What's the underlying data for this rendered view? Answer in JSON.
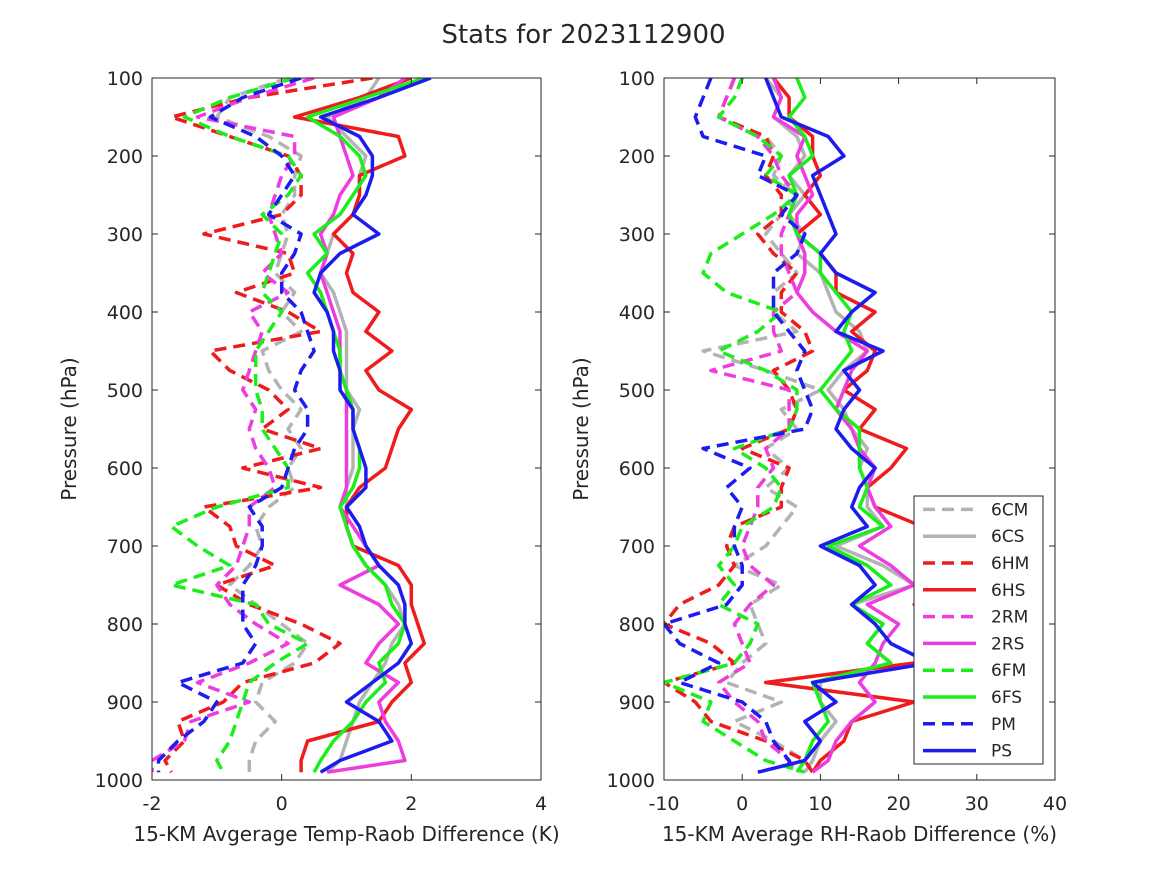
{
  "figure_title": "Stats for 2023112900",
  "chart_data": [
    {
      "type": "line",
      "xlabel": "15-KM Avgerage Temp-Raob Difference (K)",
      "ylabel": "Pressure (hPa)",
      "xlim": [
        -2,
        4
      ],
      "ylim": [
        100,
        1000
      ],
      "y_reversed": true,
      "xticks": [
        -2,
        0,
        2,
        4
      ],
      "yticks": [
        100,
        200,
        300,
        400,
        500,
        600,
        700,
        800,
        900,
        1000
      ],
      "pressure_levels": [
        100,
        125,
        150,
        175,
        200,
        225,
        250,
        275,
        300,
        325,
        350,
        375,
        400,
        425,
        450,
        475,
        500,
        525,
        550,
        575,
        600,
        625,
        650,
        675,
        700,
        725,
        750,
        775,
        800,
        825,
        850,
        875,
        900,
        925,
        950,
        975,
        990
      ],
      "series": [
        {
          "name": "6CM",
          "color": "#b3b3b3",
          "dash": true,
          "values": [
            0.1,
            -0.8,
            -1.0,
            -0.2,
            0.3,
            0.2,
            0.2,
            0.0,
            0.1,
            0.0,
            -0.1,
            0.2,
            0.0,
            0.3,
            -0.3,
            -0.2,
            0.0,
            0.3,
            0.1,
            0.3,
            0.1,
            0.2,
            -0.2,
            -0.4,
            -0.3,
            -0.5,
            -0.8,
            -0.4,
            0.0,
            0.4,
            0.2,
            -0.3,
            -0.4,
            -0.1,
            -0.4,
            -0.5,
            -0.5
          ]
        },
        {
          "name": "6CS",
          "color": "#b3b3b3",
          "dash": false,
          "values": [
            1.5,
            1.3,
            0.7,
            1.0,
            1.3,
            1.2,
            1.2,
            1.1,
            0.8,
            0.7,
            0.6,
            0.8,
            0.9,
            1.0,
            1.0,
            1.0,
            1.0,
            1.2,
            1.1,
            1.1,
            1.1,
            1.0,
            1.0,
            1.0,
            1.1,
            1.3,
            1.6,
            1.8,
            1.9,
            1.7,
            1.6,
            1.4,
            1.2,
            1.1,
            1.0,
            0.9,
            0.7
          ]
        },
        {
          "name": "6HM",
          "color": "#ee1c1c",
          "dash": true,
          "values": [
            1.4,
            -0.5,
            -1.7,
            -0.8,
            0.1,
            0.3,
            0.3,
            0.0,
            -1.2,
            0.1,
            0.2,
            -0.7,
            0.1,
            0.6,
            -1.1,
            -0.8,
            -0.2,
            0.1,
            -0.3,
            0.6,
            -0.6,
            0.6,
            -1.2,
            -0.8,
            -0.7,
            -0.1,
            -1.0,
            -0.5,
            0.3,
            0.9,
            0.5,
            -0.6,
            -0.9,
            -1.6,
            -1.5,
            -1.8,
            -1.7
          ]
        },
        {
          "name": "6HS",
          "color": "#ee1c1c",
          "dash": false,
          "values": [
            2.0,
            1.2,
            0.2,
            1.8,
            1.9,
            1.2,
            1.2,
            1.1,
            0.8,
            1.1,
            1.0,
            1.1,
            1.5,
            1.3,
            1.7,
            1.3,
            1.5,
            2.0,
            1.8,
            1.7,
            1.6,
            1.2,
            1.0,
            1.0,
            1.1,
            1.8,
            2.0,
            2.0,
            2.1,
            2.2,
            1.9,
            2.0,
            1.7,
            1.5,
            0.4,
            0.3,
            0.3
          ]
        },
        {
          "name": "2RM",
          "color": "#ee3ddf",
          "dash": true,
          "values": [
            0.5,
            -0.5,
            -1.3,
            0.2,
            0.2,
            0.0,
            -0.1,
            -0.2,
            -0.1,
            0.0,
            -0.3,
            0.1,
            -0.5,
            -0.3,
            -0.4,
            -0.5,
            -0.6,
            -0.4,
            -0.5,
            -0.4,
            -0.2,
            -0.1,
            -0.5,
            -0.5,
            -0.6,
            -0.7,
            -1.0,
            -0.8,
            -0.4,
            0.1,
            -0.5,
            -1.3,
            -0.5,
            -1.4,
            -1.5,
            -2.0,
            -2.0
          ]
        },
        {
          "name": "2RS",
          "color": "#ee3ddf",
          "dash": false,
          "values": [
            1.9,
            1.5,
            0.8,
            0.9,
            1.0,
            1.1,
            0.9,
            0.8,
            0.6,
            0.7,
            0.6,
            0.7,
            0.8,
            0.9,
            0.9,
            0.9,
            1.0,
            1.0,
            1.0,
            1.0,
            1.0,
            1.0,
            0.9,
            1.1,
            1.3,
            1.5,
            0.9,
            1.5,
            1.8,
            1.5,
            1.3,
            1.8,
            1.5,
            1.6,
            1.8,
            1.9,
            0.7
          ]
        },
        {
          "name": "6FM",
          "color": "#1cee1c",
          "dash": true,
          "values": [
            0.2,
            -0.8,
            -1.5,
            -0.8,
            0.1,
            0.3,
            0.1,
            -0.3,
            0.0,
            -0.1,
            -0.2,
            -0.3,
            0.0,
            -0.2,
            -0.4,
            -0.4,
            -0.4,
            -0.3,
            -0.3,
            -0.1,
            0.1,
            0.1,
            -1.0,
            -1.7,
            -1.3,
            -0.8,
            -1.7,
            -0.4,
            -0.2,
            0.4,
            -0.1,
            -0.5,
            -0.6,
            -0.7,
            -0.8,
            -1.0,
            -0.9
          ]
        },
        {
          "name": "6FS",
          "color": "#1cee1c",
          "dash": false,
          "values": [
            2.2,
            1.3,
            0.4,
            0.9,
            1.2,
            1.3,
            1.1,
            0.9,
            0.5,
            0.7,
            0.4,
            0.6,
            0.7,
            0.8,
            0.9,
            0.9,
            1.0,
            1.1,
            1.1,
            1.2,
            1.2,
            1.1,
            0.9,
            1.0,
            1.1,
            1.3,
            1.6,
            1.7,
            1.9,
            1.8,
            1.5,
            1.6,
            1.3,
            1.1,
            0.8,
            0.6,
            0.5
          ]
        },
        {
          "name": "PM",
          "color": "#1c1cee",
          "dash": true,
          "values": [
            0.3,
            -0.6,
            -1.1,
            -0.4,
            0.0,
            0.2,
            0.0,
            -0.2,
            0.3,
            0.2,
            0.0,
            0.0,
            0.3,
            0.4,
            0.5,
            0.3,
            0.2,
            0.4,
            0.4,
            0.2,
            0.1,
            0.0,
            -0.5,
            -0.3,
            -0.3,
            -0.4,
            -0.6,
            -0.6,
            -0.6,
            -0.4,
            -0.6,
            -1.6,
            -1.0,
            -1.2,
            -1.6,
            -1.9,
            -1.9
          ]
        },
        {
          "name": "PS",
          "color": "#1c1cee",
          "dash": false,
          "values": [
            2.3,
            1.5,
            0.6,
            1.2,
            1.4,
            1.4,
            1.3,
            1.1,
            1.5,
            0.9,
            0.6,
            0.5,
            0.7,
            0.8,
            0.8,
            0.9,
            0.9,
            1.1,
            1.1,
            1.2,
            1.3,
            1.3,
            1.0,
            1.2,
            1.3,
            1.5,
            1.8,
            1.9,
            1.9,
            2.0,
            1.8,
            1.4,
            1.0,
            1.5,
            1.7,
            0.9,
            0.6
          ]
        }
      ]
    },
    {
      "type": "line",
      "xlabel": "15-KM Average RH-Raob Difference (%)",
      "ylabel": "Pressure (hPa)",
      "xlim": [
        -10,
        40
      ],
      "ylim": [
        100,
        1000
      ],
      "y_reversed": true,
      "xticks": [
        -10,
        0,
        10,
        20,
        30,
        40
      ],
      "yticks": [
        100,
        200,
        300,
        400,
        500,
        600,
        700,
        800,
        900,
        1000
      ],
      "legend_position": "bottom-right",
      "pressure_levels": [
        100,
        125,
        150,
        175,
        200,
        225,
        250,
        275,
        300,
        325,
        350,
        375,
        400,
        425,
        450,
        475,
        500,
        525,
        550,
        575,
        600,
        625,
        650,
        675,
        700,
        725,
        750,
        775,
        800,
        825,
        850,
        875,
        900,
        925,
        950,
        975,
        990
      ],
      "series": [
        {
          "name": "6CM",
          "color": "#b3b3b3",
          "dash": true,
          "values": [
            -1,
            -2,
            -3,
            3,
            5,
            4,
            7,
            5,
            3,
            5,
            7,
            4,
            4,
            7,
            -5,
            3,
            10,
            5,
            7,
            3,
            6,
            3,
            7,
            5,
            3,
            -1,
            5,
            1,
            2,
            3,
            0,
            -2,
            5,
            -1,
            4,
            8,
            7
          ]
        },
        {
          "name": "6CS",
          "color": "#b3b3b3",
          "dash": false,
          "values": [
            3,
            5,
            4,
            7,
            8,
            6,
            8,
            6,
            8,
            7,
            10,
            11,
            12,
            15,
            16,
            13,
            11,
            13,
            14,
            16,
            15,
            16,
            16,
            18,
            12,
            18,
            22,
            14,
            18,
            16,
            19,
            10,
            10,
            12,
            10,
            9,
            8
          ]
        },
        {
          "name": "6HM",
          "color": "#ee1c1c",
          "dash": true,
          "values": [
            -1,
            -2,
            -3,
            3,
            4,
            3,
            5,
            5,
            2,
            4,
            7,
            5,
            5,
            8,
            9,
            4,
            6,
            7,
            6,
            0,
            6,
            5,
            5,
            -1,
            -2,
            -1,
            -3,
            -8,
            -10,
            -4,
            -1,
            -10,
            -6,
            -4,
            3,
            8,
            9
          ]
        },
        {
          "name": "6HS",
          "color": "#ee1c1c",
          "dash": false,
          "values": [
            4,
            6,
            6,
            9,
            9,
            10,
            8,
            10,
            7,
            10,
            12,
            12,
            17,
            14,
            17,
            16,
            13,
            17,
            15,
            21,
            19,
            16,
            17,
            23,
            26,
            24,
            28,
            22,
            25,
            26,
            22,
            3,
            22,
            14,
            13,
            10,
            9
          ]
        },
        {
          "name": "2RM",
          "color": "#ee3ddf",
          "dash": true,
          "values": [
            -1,
            -2,
            -3,
            2,
            4,
            5,
            7,
            6,
            5,
            5,
            6,
            7,
            4,
            4,
            5,
            -4,
            6,
            6,
            6,
            3,
            4,
            2,
            2,
            1,
            0,
            1,
            4,
            1,
            -1,
            0,
            1,
            -3,
            -1,
            2,
            3,
            6,
            7
          ]
        },
        {
          "name": "2RS",
          "color": "#ee3ddf",
          "dash": false,
          "values": [
            4,
            5,
            4,
            8,
            7,
            8,
            9,
            7,
            7,
            8,
            8,
            7,
            9,
            12,
            16,
            14,
            13,
            12,
            14,
            15,
            17,
            16,
            17,
            19,
            15,
            19,
            22,
            16,
            20,
            18,
            17,
            15,
            17,
            14,
            12,
            11,
            9
          ]
        },
        {
          "name": "6FM",
          "color": "#1cee1c",
          "dash": true,
          "values": [
            0,
            -1,
            -3,
            2,
            5,
            3,
            7,
            4,
            0,
            -4,
            -5,
            -2,
            5,
            2,
            -3,
            3,
            7,
            7,
            6,
            -1,
            3,
            5,
            4,
            0,
            -1,
            -3,
            -1,
            -3,
            2,
            1,
            -1,
            -10,
            -4,
            -5,
            -1,
            3,
            8
          ]
        },
        {
          "name": "6FS",
          "color": "#1cee1c",
          "dash": false,
          "values": [
            7,
            8,
            6,
            8,
            9,
            6,
            7,
            6,
            7,
            10,
            10,
            12,
            14,
            13,
            14,
            12,
            10,
            12,
            15,
            15,
            15,
            16,
            15,
            18,
            11,
            16,
            19,
            14,
            18,
            16,
            19,
            9,
            10,
            11,
            9,
            8,
            7
          ]
        },
        {
          "name": "PM",
          "color": "#1c1cee",
          "dash": true,
          "values": [
            -4,
            -5,
            -6,
            -5,
            3,
            2,
            7,
            5,
            8,
            7,
            4,
            4,
            4,
            6,
            8,
            7,
            8,
            9,
            8,
            -5,
            1,
            -2,
            0,
            -1,
            -1,
            0,
            0,
            -2,
            -10,
            -8,
            -3,
            -8,
            0,
            3,
            4,
            6,
            6
          ]
        },
        {
          "name": "PS",
          "color": "#1c1cee",
          "dash": false,
          "values": [
            3,
            4,
            5,
            11,
            13,
            9,
            10,
            11,
            12,
            10,
            12,
            17,
            14,
            12,
            18,
            13,
            15,
            13,
            12,
            14,
            17,
            15,
            14,
            16,
            10,
            15,
            17,
            14,
            17,
            19,
            24,
            9,
            12,
            8,
            10,
            8,
            2
          ]
        }
      ]
    }
  ]
}
